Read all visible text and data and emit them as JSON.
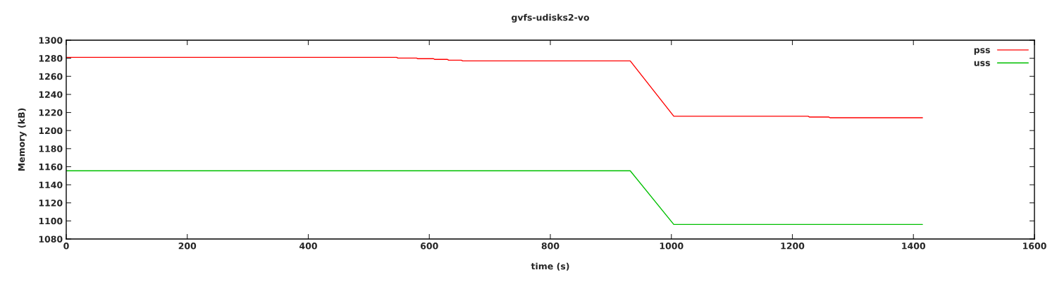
{
  "chart_data": {
    "type": "line",
    "title": "gvfs-udisks2-vo",
    "xlabel": "time (s)",
    "ylabel": "Memory (kB)",
    "series": [
      {
        "name": "pss",
        "color": "#ff0000",
        "x": [
          0,
          546,
          548,
          579,
          581,
          607,
          609,
          630,
          632,
          653,
          655,
          932,
          1004,
          1226,
          1228,
          1260,
          1262,
          1415
        ],
        "values": [
          1281.0,
          1281.0,
          1280.2,
          1280.2,
          1279.5,
          1279.5,
          1278.7,
          1278.7,
          1277.9,
          1277.9,
          1277.1,
          1277.1,
          1215.8,
          1215.8,
          1215.0,
          1215.0,
          1214.2,
          1214.2
        ]
      },
      {
        "name": "uss",
        "color": "#00c000",
        "x": [
          0,
          932,
          1004,
          1415
        ],
        "values": [
          1155.5,
          1155.5,
          1096.1,
          1096.1
        ]
      }
    ],
    "xlim": [
      0,
      1600
    ],
    "xticks": [
      0,
      200,
      400,
      600,
      800,
      1000,
      1200,
      1400,
      1600
    ],
    "ylim": [
      1080,
      1300
    ],
    "yticks": [
      1080,
      1100,
      1120,
      1140,
      1160,
      1180,
      1200,
      1220,
      1240,
      1260,
      1280,
      1300
    ],
    "grid": false,
    "legend": "top right",
    "marker": "none",
    "line_style": "solid"
  }
}
